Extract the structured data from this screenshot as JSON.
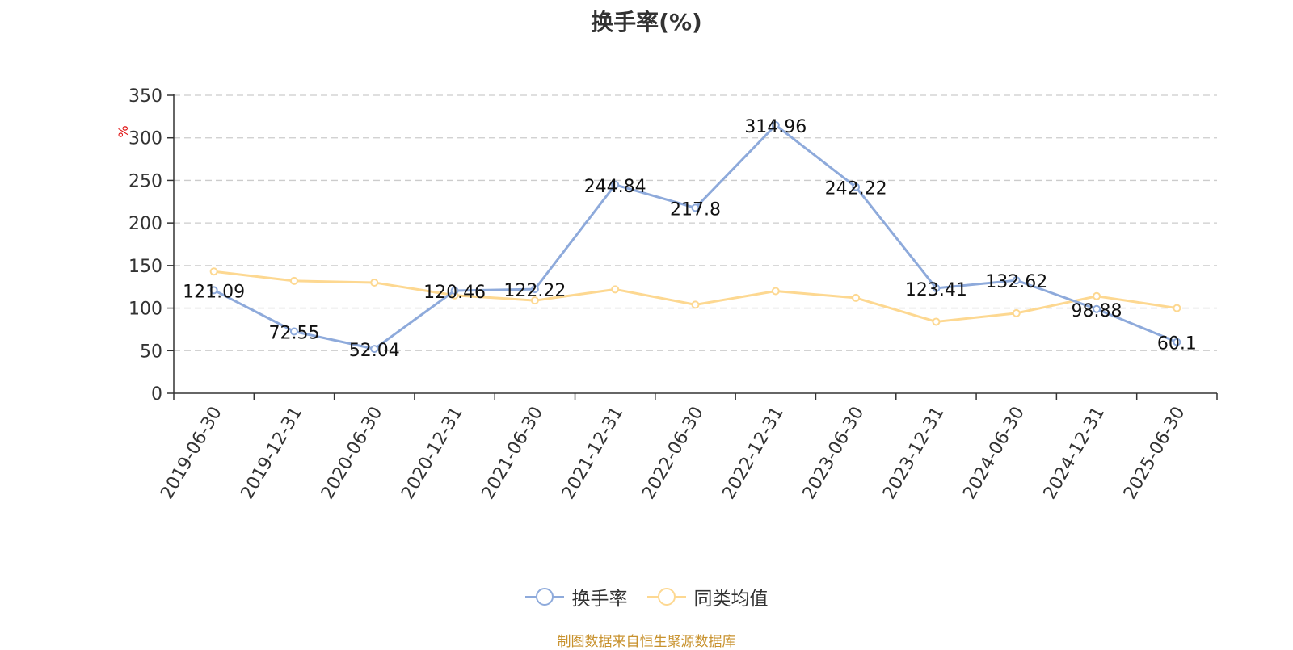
{
  "chart_data": {
    "type": "line",
    "title": "换手率(%)",
    "ylabel": "%",
    "ylim": [
      0,
      350
    ],
    "yticks": [
      0,
      50,
      100,
      150,
      200,
      250,
      300,
      350
    ],
    "categories": [
      "2019-06-30",
      "2019-12-31",
      "2020-06-30",
      "2020-12-31",
      "2021-06-30",
      "2021-12-31",
      "2022-06-30",
      "2022-12-31",
      "2023-06-30",
      "2023-12-31",
      "2024-06-30",
      "2024-12-31",
      "2025-06-30"
    ],
    "series": [
      {
        "name": "换手率",
        "color": "#8eaadb",
        "values": [
          121.09,
          72.55,
          52.04,
          120.46,
          122.22,
          244.84,
          217.8,
          314.96,
          242.22,
          123.41,
          132.62,
          98.88,
          60.1
        ],
        "labels": [
          "121.09",
          "72.55",
          "52.04",
          "120.46",
          "122.22",
          "244.84",
          "217.8",
          "314.96",
          "242.22",
          "123.41",
          "132.62",
          "98.88",
          "60.1"
        ]
      },
      {
        "name": "同类均值",
        "color": "#fdd891",
        "values": [
          143,
          132,
          130,
          115,
          109,
          122,
          104,
          120,
          112,
          84,
          94,
          114,
          100
        ]
      }
    ],
    "grid": true,
    "legend_position": "bottom"
  },
  "source_note": "制图数据来自恒生聚源数据库"
}
